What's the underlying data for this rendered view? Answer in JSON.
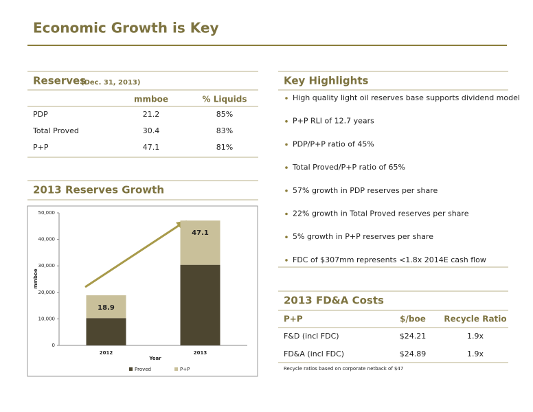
{
  "title": "Economic Growth is Key",
  "reserves": {
    "title": "Reserves",
    "subtitle": "(Dec. 31, 2013)",
    "columns": [
      "mmboe",
      "% Liquids"
    ],
    "rows": [
      [
        "PDP",
        21.2,
        "85%"
      ],
      [
        "Total Proved",
        30.4,
        "83%"
      ],
      [
        "P+P",
        47.1,
        "81%"
      ]
    ]
  },
  "growth_title": "2013 Reserves Growth",
  "chart_data": {
    "type": "bar",
    "stacked": true,
    "categories": [
      "2012",
      "2013"
    ],
    "series": [
      {
        "name": "Proved",
        "color": "#4d4630",
        "values": [
          10300,
          30400
        ]
      },
      {
        "name": "P+P",
        "color": "#c9c09a",
        "values": [
          8600,
          16700
        ]
      }
    ],
    "ylim": [
      0,
      50000
    ],
    "yticks": [
      0,
      {
        "value": 10000,
        "label": "10,000"
      },
      {
        "value": 20000,
        "label": "20,000"
      },
      {
        "value": 30000,
        "label": "30,000"
      },
      {
        "value": 40000,
        "label": "40,000"
      },
      {
        "value": 50000,
        "label": "50,000"
      }
    ],
    "ylabel": "mmboe",
    "xlabel": "Year",
    "annotations": [
      "18.9",
      "47.1"
    ],
    "legend": "bottom"
  },
  "highlights": {
    "title": "Key Highlights",
    "items": [
      "High quality light oil reserves base supports dividend model",
      "P+P RLI of 12.7 years",
      "PDP/P+P ratio of 45%",
      "Total Proved/P+P ratio of 65%",
      "57% growth in PDP reserves per share",
      "22% growth in Total Proved reserves per share",
      "5% growth in P+P reserves per share",
      "FDC of $307mm represents <1.8x 2014E cash flow"
    ]
  },
  "costs": {
    "title": "2013 FD&A Costs",
    "columns": [
      "P+P",
      "$/boe",
      "Recycle Ratio"
    ],
    "rows": [
      [
        "F&D (incl FDC)",
        "$24.21",
        "1.9x"
      ],
      [
        "FD&A (incl FDC)",
        "$24.89",
        "1.9x"
      ]
    ],
    "note": "Recycle ratios based on corporate netback of $47"
  }
}
